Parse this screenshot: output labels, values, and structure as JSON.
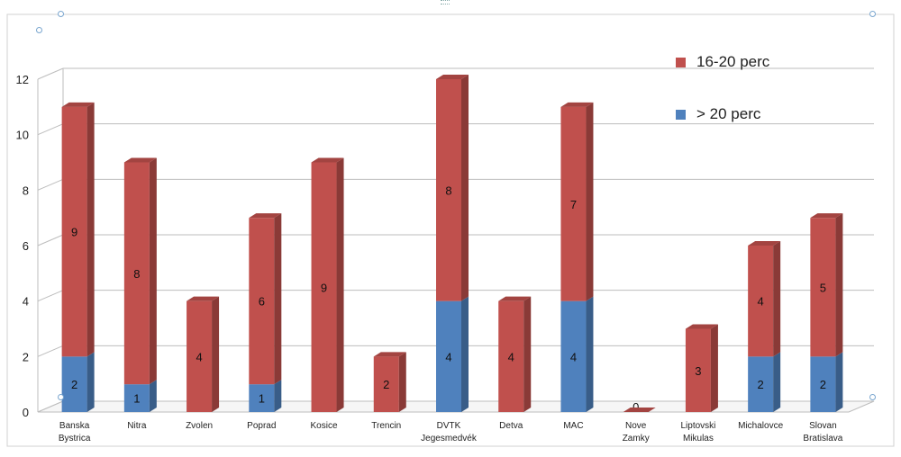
{
  "chart_data": {
    "type": "bar",
    "stacked": true,
    "style": "3d-column",
    "title": "",
    "xlabel": "",
    "ylabel": "",
    "ylim": [
      0,
      12
    ],
    "yticks": [
      "0",
      "2",
      "4",
      "6",
      "8",
      "10",
      "12"
    ],
    "grid": true,
    "legend_position": "top-right",
    "categories": [
      "Banska Bystrica",
      "Nitra",
      "Zvolen",
      "Poprad",
      "Kosice",
      "Trencin",
      "DVTK Jegesmedvék",
      "Detva",
      "MAC",
      "Nove Zamky",
      "Liptovski Mikulas",
      "Michalovce",
      "Slovan Bratislava"
    ],
    "series": [
      {
        "name": "> 20 perc",
        "color": "#4f81bd",
        "values": [
          2,
          1,
          0,
          1,
          0,
          0,
          4,
          0,
          4,
          0,
          0,
          2,
          2
        ],
        "labels": [
          "2",
          "1",
          "",
          "1",
          "",
          "",
          "4",
          "",
          "4",
          "",
          "",
          "2",
          "2"
        ]
      },
      {
        "name": "16-20 perc",
        "color": "#c0504d",
        "values": [
          9,
          8,
          4,
          6,
          9,
          2,
          8,
          4,
          7,
          0,
          3,
          4,
          5
        ],
        "labels": [
          "9",
          "8",
          "4",
          "6",
          "9",
          "2",
          "8",
          "4",
          "7",
          "0",
          "3",
          "4",
          "5"
        ]
      }
    ]
  }
}
